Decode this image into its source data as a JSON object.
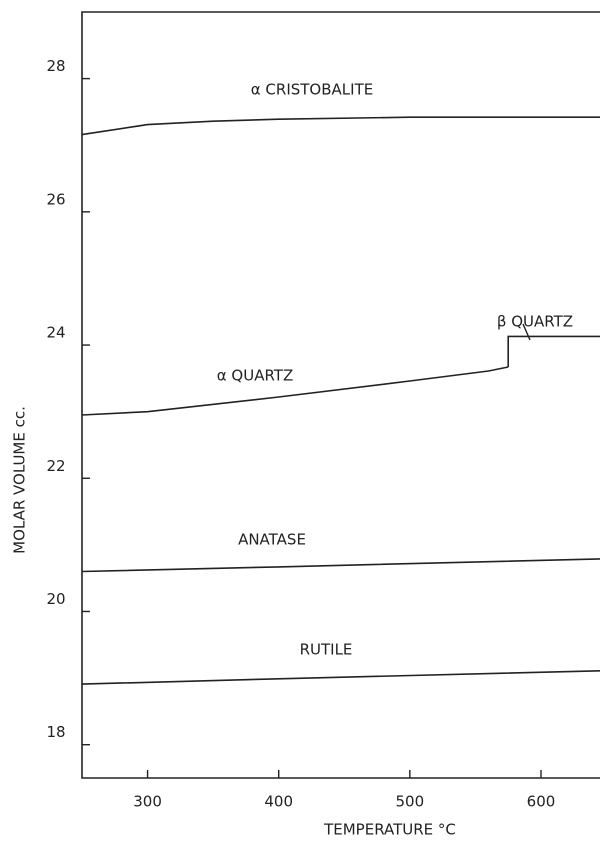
{
  "chart_data": {
    "type": "line",
    "xlabel": "TEMPERATURE °C",
    "ylabel": "MOLAR VOLUME cc.",
    "xlim": [
      250,
      645
    ],
    "xticks": [
      300,
      400,
      500,
      600
    ],
    "ylim": [
      17.5,
      29
    ],
    "yticks": [
      18,
      20,
      22,
      24,
      26,
      28
    ],
    "grid": false,
    "series": [
      {
        "name": "α CRISTOBALITE",
        "color": "#222222",
        "x": [
          250,
          300,
          350,
          400,
          500,
          600,
          645
        ],
        "values": [
          27.16,
          27.31,
          27.36,
          27.39,
          27.42,
          27.42,
          27.42
        ]
      },
      {
        "name": "α QUARTZ",
        "color": "#222222",
        "x": [
          250,
          300,
          400,
          500,
          560,
          575
        ],
        "values": [
          22.95,
          23.0,
          23.22,
          23.46,
          23.61,
          23.67
        ]
      },
      {
        "name": "β QUARTZ",
        "color": "#222222",
        "x": [
          575,
          575,
          645
        ],
        "values": [
          23.67,
          24.13,
          24.13
        ]
      },
      {
        "name": "ANATASE",
        "color": "#222222",
        "x": [
          250,
          400,
          645
        ],
        "values": [
          20.6,
          20.67,
          20.79
        ]
      },
      {
        "name": "RUTILE",
        "color": "#222222",
        "x": [
          250,
          400,
          645
        ],
        "values": [
          18.91,
          18.99,
          19.11
        ]
      }
    ]
  }
}
